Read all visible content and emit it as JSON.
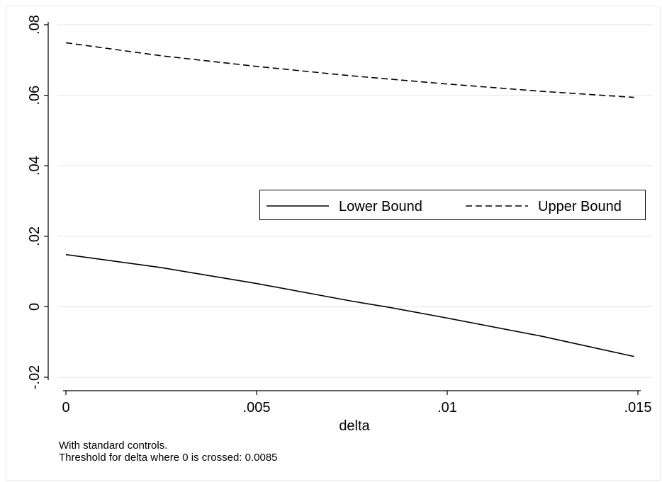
{
  "chart_data": {
    "type": "line",
    "xlabel": "delta",
    "ylabel": "",
    "xlim": [
      0,
      0.015
    ],
    "ylim": [
      -0.022,
      0.081
    ],
    "x_ticks": [
      {
        "value": 0,
        "label": "0"
      },
      {
        "value": 0.005,
        "label": ".005"
      },
      {
        "value": 0.01,
        "label": ".01"
      },
      {
        "value": 0.015,
        "label": ".015"
      }
    ],
    "y_ticks": [
      {
        "value": -0.02,
        "label": "-.02"
      },
      {
        "value": 0,
        "label": "0"
      },
      {
        "value": 0.02,
        "label": ".02"
      },
      {
        "value": 0.04,
        "label": ".04"
      },
      {
        "value": 0.06,
        "label": ".06"
      },
      {
        "value": 0.08,
        "label": ".08"
      }
    ],
    "grid": true,
    "legend_position": "right, inside plot",
    "series": [
      {
        "name": "Lower Bound",
        "line_style": "solid",
        "color": "#000000",
        "x": [
          0,
          0.0025,
          0.005,
          0.0075,
          0.0085,
          0.01,
          0.0125,
          0.0149
        ],
        "y": [
          0.0148,
          0.0111,
          0.0066,
          0.0016,
          -0.0002,
          -0.0032,
          -0.0084,
          -0.0141
        ]
      },
      {
        "name": "Upper Bound",
        "line_style": "dashed",
        "color": "#000000",
        "x": [
          0,
          0.0025,
          0.005,
          0.0075,
          0.01,
          0.0125,
          0.0149
        ],
        "y": [
          0.0749,
          0.0712,
          0.0682,
          0.0655,
          0.0632,
          0.0611,
          0.0594
        ]
      }
    ]
  },
  "notes": {
    "line1": "With standard controls.",
    "line2": "Threshold for delta where 0 is crossed: 0.0085"
  }
}
